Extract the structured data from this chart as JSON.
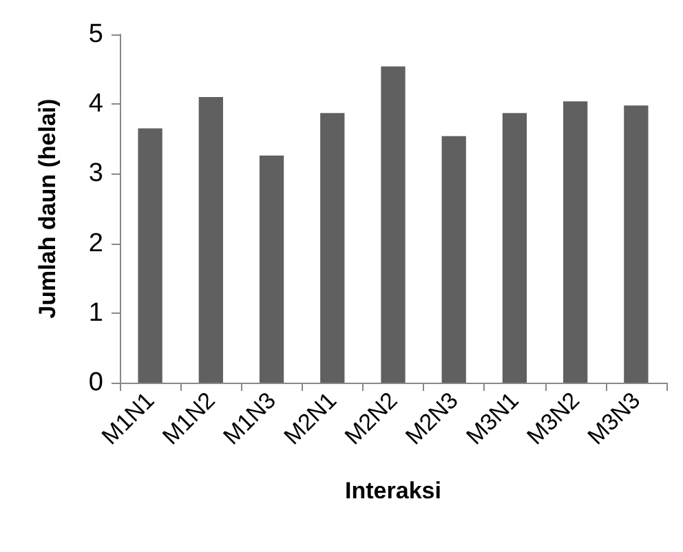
{
  "chart_data": {
    "type": "bar",
    "xlabel": "Interaksi",
    "ylabel": "Jumlah daun (helai)",
    "categories": [
      "M1N1",
      "M1N2",
      "M1N3",
      "M2N1",
      "M2N2",
      "M2N3",
      "M3N1",
      "M3N2",
      "M3N3"
    ],
    "values": [
      3.65,
      4.1,
      3.26,
      3.87,
      4.54,
      3.54,
      3.87,
      4.04,
      3.98
    ],
    "color": "#606060",
    "ylim": [
      0,
      5
    ],
    "yticks": [
      0,
      1,
      2,
      3,
      4,
      5
    ],
    "grid": false
  }
}
